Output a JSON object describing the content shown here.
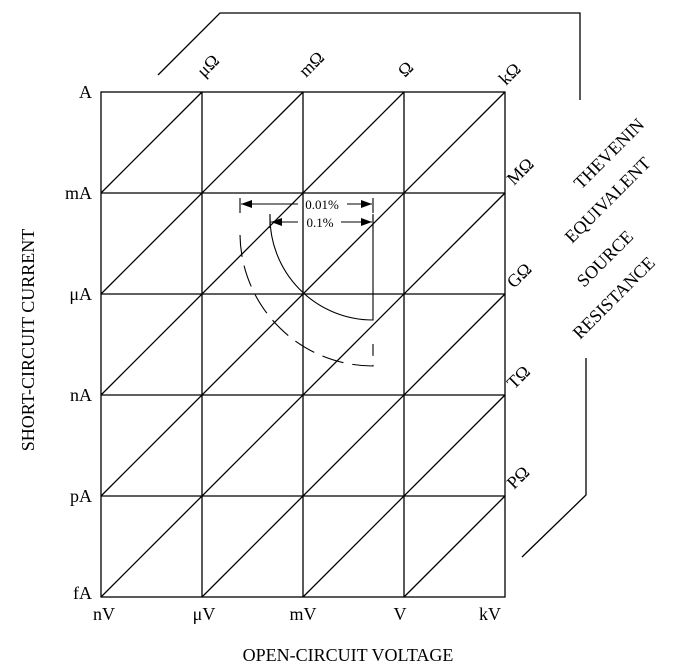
{
  "diagram": {
    "y_axis_title": "SHORT-CIRCUIT CURRENT",
    "x_axis_title": "OPEN-CIRCUIT VOLTAGE",
    "current_labels": [
      "A",
      "mA",
      "μA",
      "nA",
      "pA",
      "fA"
    ],
    "voltage_labels": [
      "nV",
      "μV",
      "mV",
      "V",
      "kV"
    ],
    "resistance_top_labels": [
      "μΩ",
      "mΩ",
      "Ω",
      "kΩ"
    ],
    "resistance_right_labels": [
      "MΩ",
      "GΩ",
      "TΩ",
      "PΩ"
    ],
    "resistance_title_lines": [
      "THEVENIN",
      "EQUIVALENT",
      "SOURCE",
      "RESISTANCE"
    ],
    "accuracy_labels": [
      "0.01%",
      "0.1%"
    ]
  }
}
